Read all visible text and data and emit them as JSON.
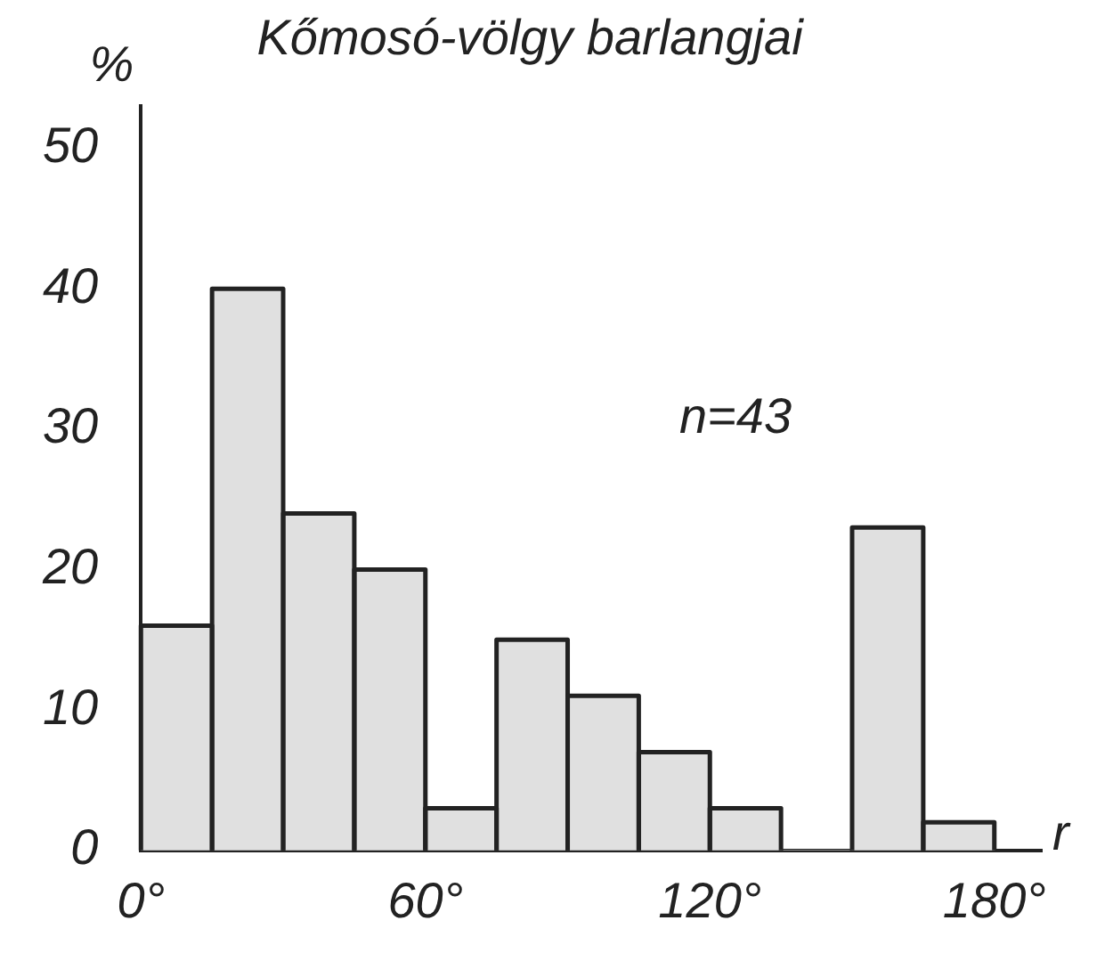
{
  "chart_data": {
    "type": "histogram",
    "title": "Kőmosó-völgy barlangjai",
    "xlabel": "r",
    "ylabel": "%",
    "bins": [
      0,
      15,
      30,
      45,
      60,
      75,
      90,
      105,
      120,
      135,
      150,
      165,
      180
    ],
    "values": [
      16,
      40,
      24,
      20,
      3,
      15,
      11,
      7,
      3,
      0,
      23,
      2
    ],
    "color": "#e0e0e0",
    "xlim": [
      0,
      190
    ],
    "xticks": [
      {
        "value": 0,
        "label": "0°"
      },
      {
        "value": 60,
        "label": "60°"
      },
      {
        "value": 120,
        "label": "120°"
      },
      {
        "value": 180,
        "label": "180°"
      }
    ],
    "ylim": [
      0,
      53
    ],
    "yticks": [
      0,
      10,
      20,
      30,
      40,
      50
    ],
    "annotations": [
      "n=43"
    ],
    "grid": false,
    "legend": false
  }
}
